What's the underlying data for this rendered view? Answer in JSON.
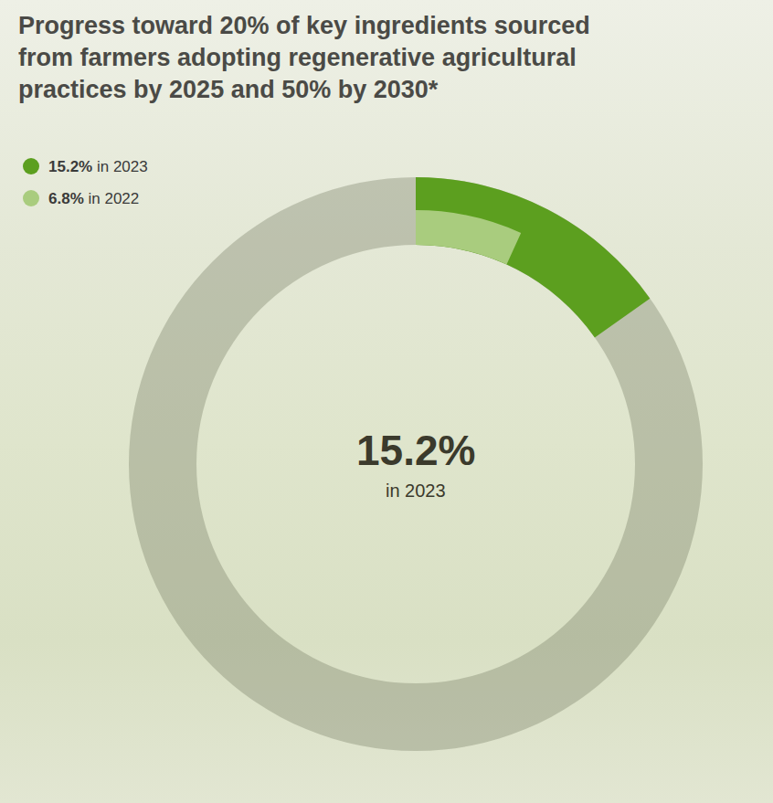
{
  "chart_data": {
    "type": "donut",
    "title": "Progress toward 20% of key ingredients sourced from farmers adopting regenerative agricultural practices by 2025 and 50% by 2030*",
    "categories": [
      "in 2023",
      "in 2022"
    ],
    "values": [
      15.2,
      6.8
    ],
    "value_labels": [
      "15.2%",
      "6.8%"
    ],
    "colors": [
      "#5c9f1f",
      "#a9cc7e"
    ],
    "ylim": [
      0,
      100
    ],
    "tick_labels": false,
    "legend": "top left",
    "center_label": [
      "15.2%",
      "in 2023"
    ]
  }
}
